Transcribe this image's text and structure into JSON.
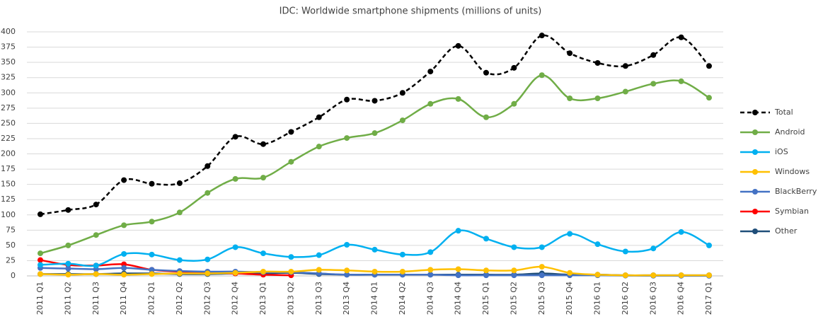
{
  "chart_data": {
    "type": "line",
    "title": "IDC: Worldwide smartphone shipments (millions of units)",
    "categories": [
      "2011 Q1",
      "2011 Q2",
      "2011 Q3",
      "2011 Q4",
      "2012 Q1",
      "2012 Q2",
      "2012 Q3",
      "2012 Q4",
      "2013 Q1",
      "2013 Q2",
      "2013 Q3",
      "2013 Q4",
      "2014 Q1",
      "2014 Q2",
      "2014 Q3",
      "2014 Q4",
      "2015 Q1",
      "2015 Q2",
      "2015 Q3",
      "2015 Q4",
      "2016 Q1",
      "2016 Q2",
      "2016 Q3",
      "2016 Q4",
      "2017 Q1"
    ],
    "series": [
      {
        "name": "Total",
        "color": "#000000",
        "dashed": true,
        "values": [
          101,
          108,
          117,
          157,
          151,
          152,
          180,
          228,
          216,
          236,
          260,
          289,
          287,
          300,
          335,
          377,
          333,
          341,
          394,
          365,
          349,
          344,
          362,
          391,
          344
        ]
      },
      {
        "name": "Android",
        "color": "#70ad47",
        "values": [
          37,
          50,
          67,
          83,
          89,
          104,
          136,
          159,
          161,
          187,
          212,
          226,
          234,
          255,
          282,
          290,
          260,
          282,
          329,
          291,
          291,
          302,
          315,
          319,
          292
        ]
      },
      {
        "name": "iOS",
        "color": "#00b0f0",
        "values": [
          18,
          20,
          17,
          36,
          35,
          26,
          27,
          47,
          37,
          31,
          34,
          51,
          43,
          35,
          39,
          74,
          61,
          47,
          47,
          69,
          52,
          40,
          45,
          72,
          50
        ]
      },
      {
        "name": "Windows",
        "color": "#ffc000",
        "values": [
          3,
          2,
          3,
          2,
          3,
          4,
          4,
          5,
          7,
          7,
          10,
          9,
          7,
          7,
          10,
          11,
          9,
          9,
          15,
          5,
          2,
          1,
          1,
          1,
          1
        ]
      },
      {
        "name": "BlackBerry",
        "color": "#4472c4",
        "values": [
          13,
          12,
          11,
          13,
          10,
          8,
          7,
          7,
          6,
          6,
          4,
          2,
          2,
          2,
          2,
          1,
          1,
          1,
          1,
          1,
          1,
          0.5,
          0.3,
          0.2,
          0.1
        ]
      },
      {
        "name": "Symbian",
        "color": "#ff0000",
        "values": [
          26,
          18,
          17,
          19,
          10,
          7,
          6,
          4,
          2,
          1,
          null,
          null,
          null,
          null,
          null,
          null,
          null,
          null,
          null,
          null,
          null,
          null,
          null,
          null,
          null
        ]
      },
      {
        "name": "Other",
        "color": "#1f4e79",
        "values": [
          3,
          3,
          3,
          4,
          4,
          3,
          3,
          4,
          4,
          5,
          3,
          2,
          2,
          2,
          2,
          2,
          2,
          2,
          4,
          2,
          2,
          1,
          1,
          1,
          1
        ]
      }
    ],
    "ylim": [
      0,
      400
    ],
    "yticks": [
      0,
      25,
      50,
      75,
      100,
      125,
      150,
      175,
      200,
      225,
      250,
      275,
      300,
      325,
      350,
      375,
      400
    ],
    "grid": true,
    "legend": "right"
  }
}
